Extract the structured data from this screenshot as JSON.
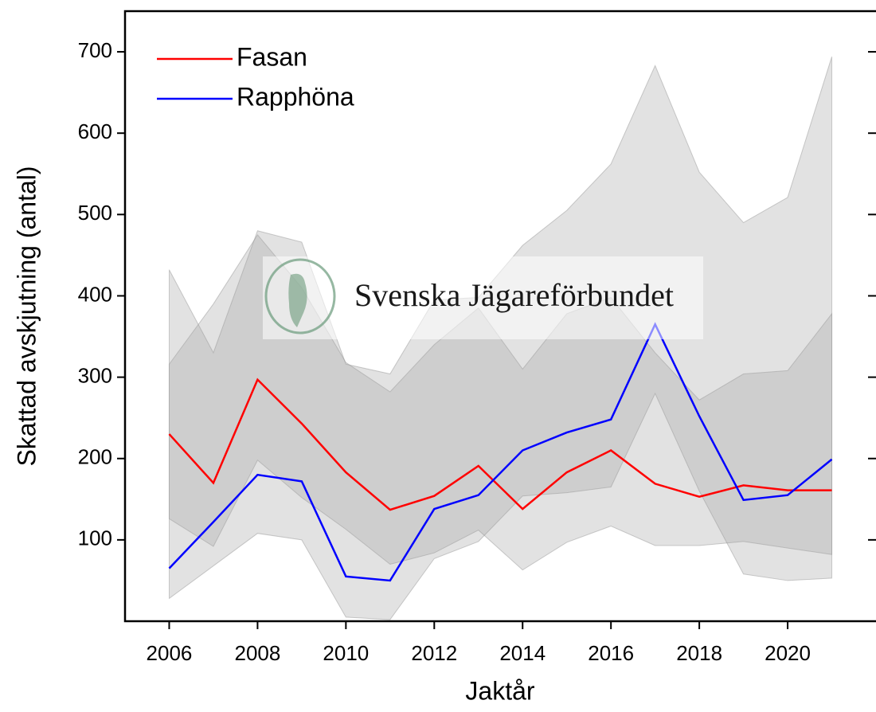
{
  "chart_data": {
    "type": "line",
    "xlabel": "Jaktår",
    "ylabel": "Skattad avskjutning (antal)",
    "watermark": "Svenska Jägareförbundet",
    "x": [
      2006,
      2007,
      2008,
      2009,
      2010,
      2011,
      2012,
      2013,
      2014,
      2015,
      2016,
      2017,
      2018,
      2019,
      2020,
      2021
    ],
    "series": [
      {
        "name": "Fasan",
        "color": "#ff0000",
        "values": [
          230,
          170,
          297,
          243,
          183,
          137,
          154,
          191,
          138,
          183,
          210,
          169,
          153,
          167,
          161,
          161
        ],
        "lower": [
          126,
          92,
          198,
          152,
          113,
          70,
          84,
          112,
          63,
          97,
          117,
          93,
          93,
          98,
          90,
          82
        ],
        "upper": [
          316,
          390,
          475,
          410,
          318,
          282,
          340,
          385,
          310,
          378,
          398,
          330,
          272,
          304,
          308,
          378
        ]
      },
      {
        "name": "Rapphöna",
        "color": "#0000ff",
        "values": [
          65,
          122,
          180,
          172,
          55,
          50,
          138,
          155,
          210,
          232,
          248,
          365,
          252,
          149,
          155,
          199
        ],
        "lower": [
          28,
          68,
          108,
          100,
          5,
          2,
          77,
          98,
          154,
          158,
          165,
          280,
          160,
          58,
          50,
          53
        ],
        "upper": [
          432,
          330,
          480,
          466,
          316,
          304,
          395,
          398,
          462,
          505,
          562,
          683,
          552,
          490,
          521,
          694
        ]
      }
    ],
    "band_color": "#a0a0a0",
    "xlim": [
      2005,
      2022
    ],
    "ylim": [
      0,
      750
    ],
    "xticks": [
      2006,
      2008,
      2010,
      2012,
      2014,
      2016,
      2018,
      2020
    ],
    "yticks": [
      100,
      200,
      300,
      400,
      500,
      600,
      700
    ],
    "legend": "upper left"
  }
}
